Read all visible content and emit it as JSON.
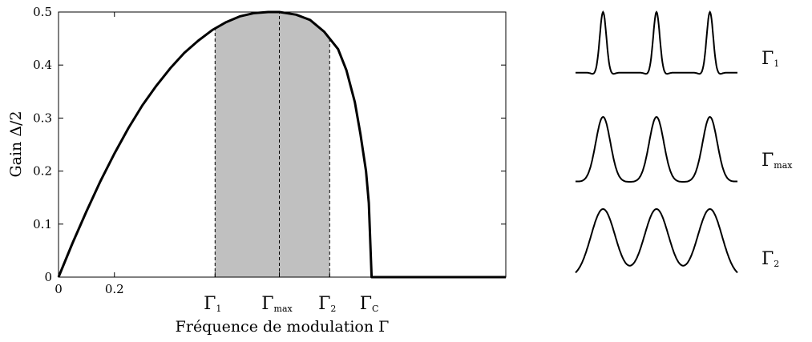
{
  "chart_data": [
    {
      "type": "area",
      "xlabel": "Fréquence de modulation Γ",
      "ylabel": "Gain Δ/2",
      "ylim": [
        0,
        0.5
      ],
      "xlim": [
        0,
        1.6
      ],
      "x_tick_labels": [
        "0",
        "0.2"
      ],
      "y_tick_labels": [
        "0",
        "0.1",
        "0.2",
        "0.3",
        "0.4",
        "0.5"
      ],
      "x_markers": [
        {
          "main": "Γ",
          "sub": "1",
          "x": 0.56,
          "dashed": true
        },
        {
          "main": "Γ",
          "sub": "max",
          "x": 0.79,
          "dashed": true
        },
        {
          "main": "Γ",
          "sub": "2",
          "x": 0.97,
          "dashed": true
        },
        {
          "main": "Γ",
          "sub": "C",
          "x": 1.12,
          "dashed": false
        }
      ],
      "shaded_region": {
        "x": [
          0.56,
          0.97
        ],
        "color": "#c0c0c0"
      },
      "grid": false,
      "series": [
        {
          "x": [
            0,
            0.05,
            0.1,
            0.15,
            0.2,
            0.25,
            0.3,
            0.35,
            0.4,
            0.45,
            0.5,
            0.55,
            0.6,
            0.65,
            0.7,
            0.75,
            0.79,
            0.85,
            0.9,
            0.95,
            1.0,
            1.03,
            1.06,
            1.08,
            1.1,
            1.11,
            1.115,
            1.12,
            1.2,
            1.3,
            1.4,
            1.5,
            1.6
          ],
          "y": [
            0,
            0.064,
            0.124,
            0.181,
            0.233,
            0.281,
            0.324,
            0.361,
            0.394,
            0.423,
            0.446,
            0.466,
            0.481,
            0.492,
            0.498,
            0.5,
            0.5,
            0.495,
            0.485,
            0.463,
            0.43,
            0.39,
            0.33,
            0.27,
            0.2,
            0.14,
            0.07,
            0,
            0,
            0,
            0,
            0,
            0
          ],
          "color": "#000000"
        }
      ]
    },
    {
      "type": "line",
      "panels": [
        {
          "label_main": "Γ",
          "label_sub": "1",
          "peak_width": 0.02,
          "baseline": 0.12,
          "dip": 0.025
        },
        {
          "label_main": "Γ",
          "label_sub": "max",
          "peak_width": 0.045,
          "baseline": 0.07,
          "dip": 0.012
        },
        {
          "label_main": "Γ",
          "label_sub": "2",
          "peak_width": 0.075,
          "baseline": 0.0,
          "dip": 0.0
        }
      ]
    }
  ]
}
